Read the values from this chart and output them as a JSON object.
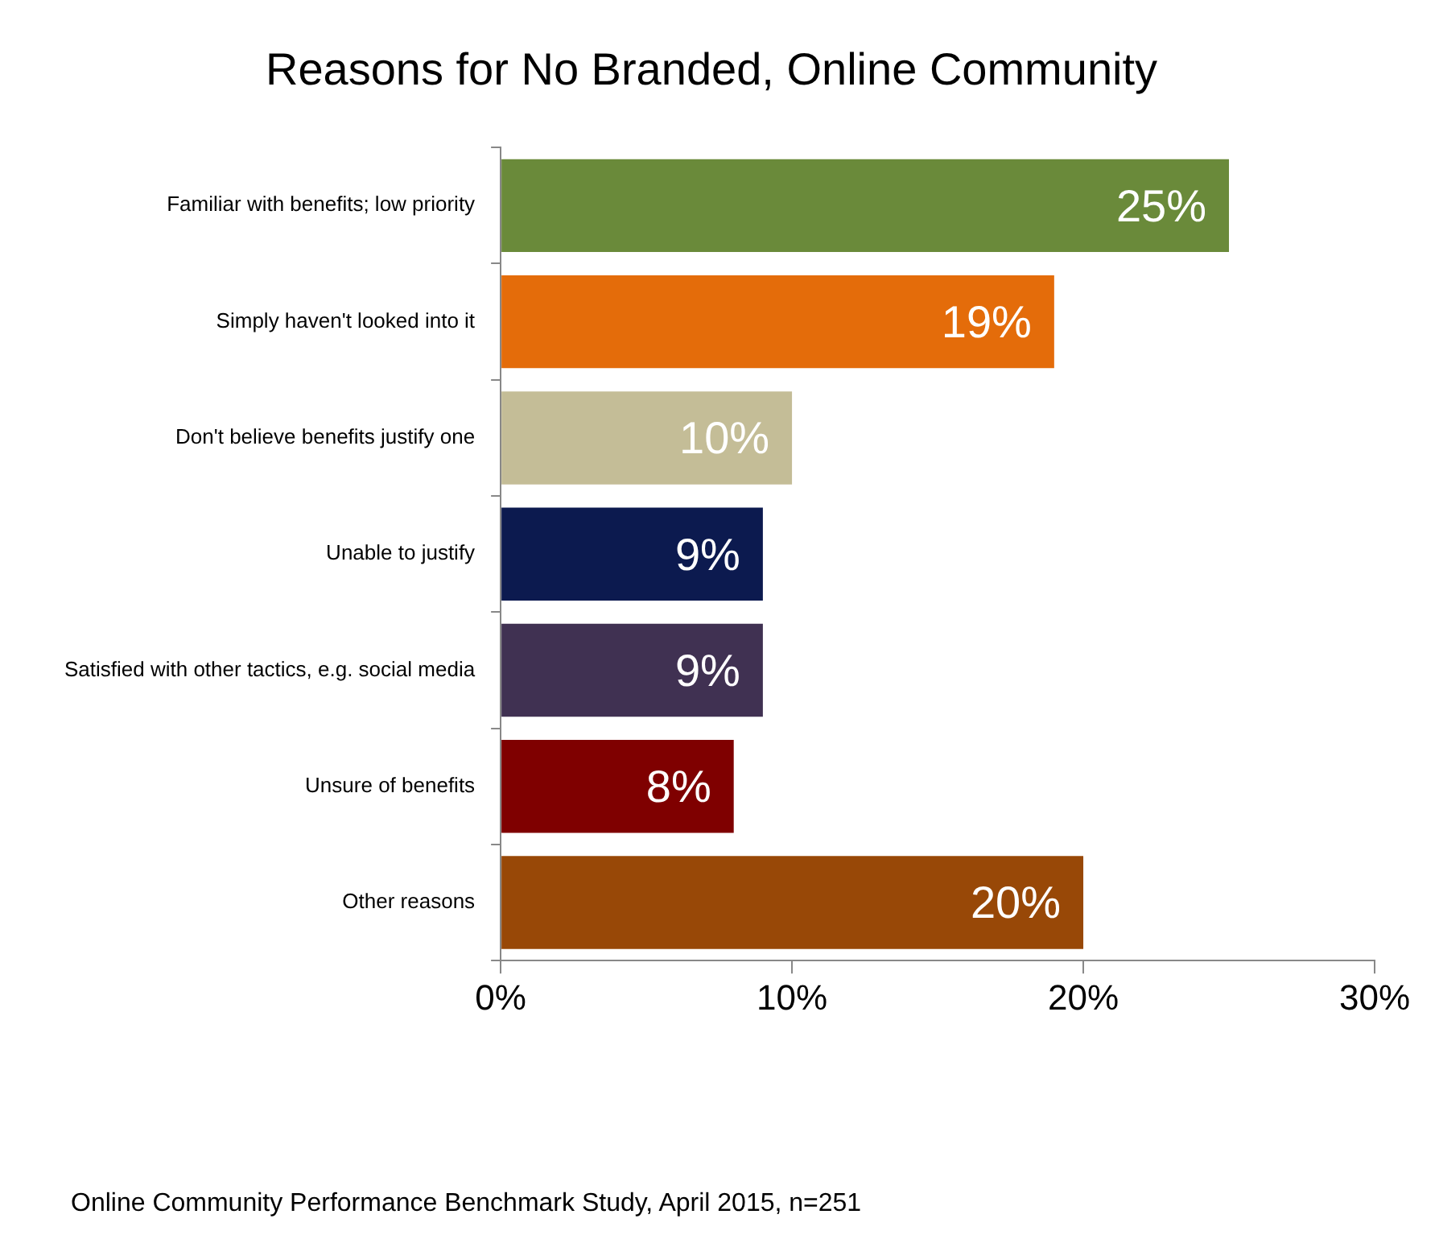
{
  "chart_data": {
    "type": "bar",
    "orientation": "horizontal",
    "title": "Reasons for No Branded, Online Community",
    "categories": [
      "Familiar with benefits; low priority",
      "Simply haven't looked into it",
      "Don't believe benefits justify one",
      "Unable to justify",
      "Satisfied with other tactics, e.g. social media",
      "Unsure of benefits",
      "Other reasons"
    ],
    "values": [
      25,
      19,
      10,
      9,
      9,
      8,
      20
    ],
    "colors": [
      "#6a8a3a",
      "#e46c0a",
      "#c4bd97",
      "#0c1a4f",
      "#403152",
      "#7f0000",
      "#984807"
    ],
    "value_labels": [
      "25%",
      "19%",
      "10%",
      "9%",
      "9%",
      "8%",
      "20%"
    ],
    "xlim": [
      0,
      30
    ],
    "xticks": [
      {
        "value": 0,
        "label": "0%"
      },
      {
        "value": 10,
        "label": "10%"
      },
      {
        "value": 20,
        "label": "20%"
      },
      {
        "value": 30,
        "label": "30%"
      }
    ],
    "grid": false,
    "legend": false,
    "annotations": [
      "Online Community Performance Benchmark Study, April 2015, n=251"
    ]
  }
}
